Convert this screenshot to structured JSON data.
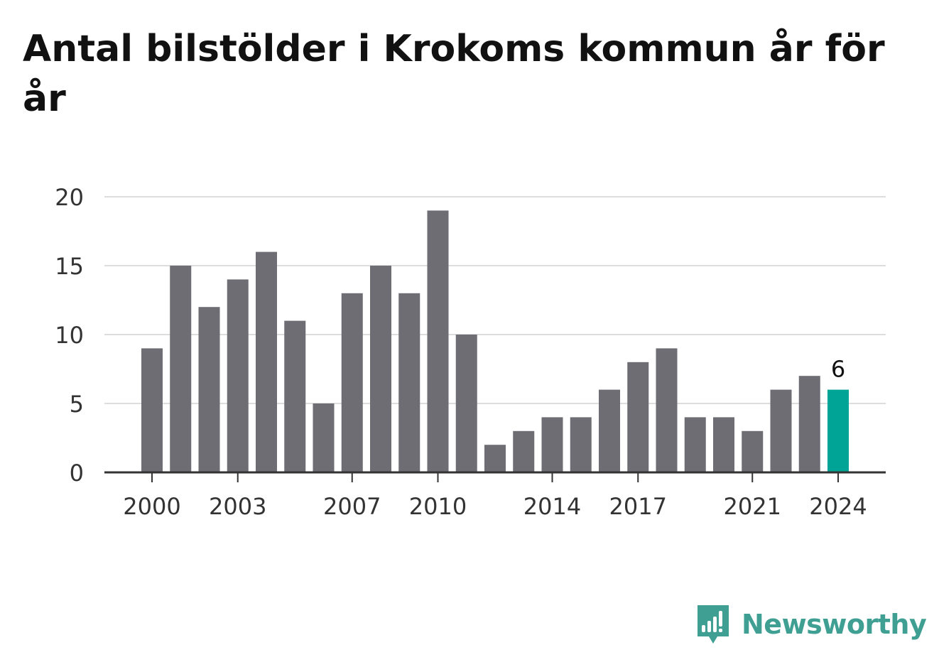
{
  "title": "Antal bilstölder i Krokoms kommun år för år",
  "brand": {
    "name": "Newsworthy",
    "icon": "bar-chart-speech-bubble-icon",
    "color": "#3f9f93"
  },
  "colors": {
    "bar": "#6e6d73",
    "highlight": "#00a497",
    "grid": "#dddddd",
    "axis": "#333333"
  },
  "chart_data": {
    "type": "bar",
    "title": "Antal bilstölder i Krokoms kommun år för år",
    "xlabel": "",
    "ylabel": "",
    "categories": [
      "2000",
      "2001",
      "2002",
      "2003",
      "2004",
      "2005",
      "2006",
      "2007",
      "2008",
      "2009",
      "2010",
      "2011",
      "2012",
      "2013",
      "2014",
      "2015",
      "2016",
      "2017",
      "2018",
      "2019",
      "2020",
      "2021",
      "2022",
      "2023",
      "2024"
    ],
    "values": [
      9,
      15,
      12,
      14,
      16,
      11,
      5,
      13,
      15,
      13,
      19,
      10,
      2,
      3,
      4,
      4,
      6,
      8,
      9,
      4,
      4,
      3,
      6,
      7,
      6
    ],
    "ylim": [
      0,
      20
    ],
    "yticks": [
      0,
      5,
      10,
      15,
      20
    ],
    "xtick_labels": [
      "2000",
      "2003",
      "2007",
      "2010",
      "2014",
      "2017",
      "2021",
      "2024"
    ],
    "highlight_category": "2024",
    "highlight_label": "6",
    "grid": true
  }
}
